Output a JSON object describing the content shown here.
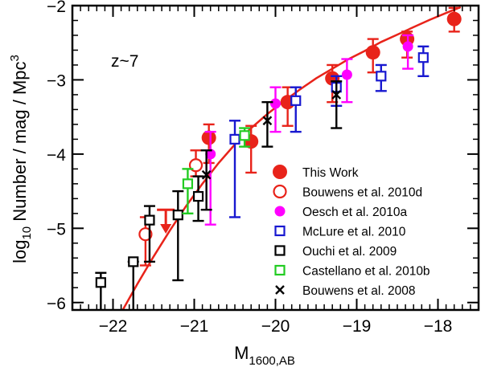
{
  "chart_data": {
    "type": "scatter",
    "title": "",
    "annotation": "z~7",
    "xlabel_main": "M",
    "xlabel_sub": "1600,AB",
    "ylabel_pre": "log",
    "ylabel_sub": "10",
    "ylabel_post": " Number / mag / Mpc",
    "ylabel_sup": "3",
    "xlim": [
      -22.5,
      -17.5
    ],
    "ylim": [
      -6.1,
      -2.0
    ],
    "x_ticks": [
      -22,
      -21,
      -20,
      -19,
      -18
    ],
    "x_tick_labels": [
      "−22",
      "−21",
      "−20",
      "−19",
      "−18"
    ],
    "y_ticks": [
      -6,
      -5,
      -4,
      -3,
      -2
    ],
    "y_tick_labels": [
      "−6",
      "−5",
      "−4",
      "−3",
      "−2"
    ],
    "legend_position": "bottom-right",
    "colors": {
      "this_work": "#e8231a",
      "bouwens2010d": "#e8231a",
      "oesch2010a": "#ff00ff",
      "mclure2010": "#1818d0",
      "ouchi2009": "#000000",
      "castellano2010b": "#22cc22",
      "bouwens2008": "#000000",
      "fit": "#e8231a"
    },
    "fit_curve": {
      "name": "Schechter fit",
      "x": [
        -21.88,
        -21.7,
        -21.5,
        -21.3,
        -21.1,
        -20.9,
        -20.7,
        -20.5,
        -20.3,
        -20.1,
        -19.9,
        -19.7,
        -19.5,
        -19.3,
        -19.1,
        -18.9,
        -18.7,
        -18.5,
        -18.3,
        -18.1,
        -17.9,
        -17.72
      ],
      "y": [
        -6.1,
        -5.75,
        -5.38,
        -5.03,
        -4.7,
        -4.4,
        -4.12,
        -3.87,
        -3.65,
        -3.46,
        -3.29,
        -3.13,
        -2.98,
        -2.85,
        -2.72,
        -2.61,
        -2.49,
        -2.39,
        -2.29,
        -2.19,
        -2.1,
        -2.02
      ]
    },
    "series": [
      {
        "key": "this_work",
        "name": "This Work",
        "marker": "filled-circle",
        "points": [
          {
            "x": -20.82,
            "y": -3.78,
            "ylo": -4.12,
            "yhi": -3.6
          },
          {
            "x": -20.3,
            "y": -3.83,
            "ylo": -4.25,
            "yhi": -3.62
          },
          {
            "x": -19.85,
            "y": -3.3,
            "ylo": -3.62,
            "yhi": -3.1
          },
          {
            "x": -19.3,
            "y": -2.98,
            "ylo": -3.3,
            "yhi": -2.8
          },
          {
            "x": -18.8,
            "y": -2.63,
            "ylo": -2.9,
            "yhi": -2.45
          },
          {
            "x": -18.38,
            "y": -2.45,
            "ylo": -2.7,
            "yhi": -2.35
          },
          {
            "x": -17.8,
            "y": -2.18,
            "ylo": -2.35,
            "yhi": -2.03
          }
        ],
        "upper_limits": [
          {
            "x": -21.35,
            "y": -4.75,
            "ylo": -5.05
          }
        ]
      },
      {
        "key": "bouwens2010d",
        "name": "Bouwens et al. 2010d",
        "marker": "open-circle",
        "points": [
          {
            "x": -21.6,
            "y": -5.08,
            "ylo": -5.5,
            "yhi": -4.85
          },
          {
            "x": -20.98,
            "y": -4.15,
            "ylo": -4.3,
            "yhi": -3.95
          }
        ]
      },
      {
        "key": "oesch2010a",
        "name": "Oesch et al. 2010a",
        "marker": "filled-circle-small",
        "points": [
          {
            "x": -20.8,
            "y": -4.0,
            "ylo": -4.95,
            "yhi": -3.7
          },
          {
            "x": -20.0,
            "y": -3.32,
            "ylo": -3.7,
            "yhi": -3.1
          },
          {
            "x": -19.12,
            "y": -2.93,
            "ylo": -3.3,
            "yhi": -2.72
          },
          {
            "x": -18.37,
            "y": -2.55,
            "ylo": -2.85,
            "yhi": -2.4
          }
        ]
      },
      {
        "key": "mclure2010",
        "name": "McLure et al. 2010",
        "marker": "open-square",
        "points": [
          {
            "x": -20.5,
            "y": -3.8,
            "ylo": -4.85,
            "yhi": -3.55
          },
          {
            "x": -19.75,
            "y": -3.28,
            "ylo": -3.7,
            "yhi": -3.1
          },
          {
            "x": -19.25,
            "y": -3.1,
            "ylo": -3.35,
            "yhi": -2.95
          },
          {
            "x": -18.7,
            "y": -2.95,
            "ylo": -3.15,
            "yhi": -2.8
          },
          {
            "x": -18.18,
            "y": -2.7,
            "ylo": -2.95,
            "yhi": -2.55
          }
        ]
      },
      {
        "key": "ouchi2009",
        "name": "Ouchi et al. 2009",
        "marker": "open-square",
        "points": [
          {
            "x": -22.15,
            "y": -5.73,
            "ylo": -6.1,
            "yhi": -5.6
          },
          {
            "x": -21.75,
            "y": -5.45,
            "ylo": -6.1,
            "yhi": -5.45
          },
          {
            "x": -21.55,
            "y": -4.89,
            "ylo": -5.45,
            "yhi": -4.7
          },
          {
            "x": -21.2,
            "y": -4.82,
            "ylo": -5.7,
            "yhi": -4.5
          },
          {
            "x": -20.95,
            "y": -4.57,
            "ylo": -4.9,
            "yhi": -4.3
          }
        ]
      },
      {
        "key": "castellano2010b",
        "name": "Castellano et al. 2010b",
        "marker": "open-square",
        "points": [
          {
            "x": -21.08,
            "y": -4.4,
            "ylo": -4.8,
            "yhi": -4.2
          },
          {
            "x": -20.38,
            "y": -3.75,
            "ylo": -3.9,
            "yhi": -3.65
          }
        ]
      },
      {
        "key": "bouwens2008",
        "name": "Bouwens et al. 2008",
        "marker": "cross",
        "points": [
          {
            "x": -20.85,
            "y": -4.28,
            "ylo": -4.75,
            "yhi": -3.95
          },
          {
            "x": -20.1,
            "y": -3.55,
            "ylo": -3.9,
            "yhi": -3.3
          },
          {
            "x": -19.25,
            "y": -3.2,
            "ylo": -3.65,
            "yhi": -3.02
          }
        ]
      }
    ]
  }
}
